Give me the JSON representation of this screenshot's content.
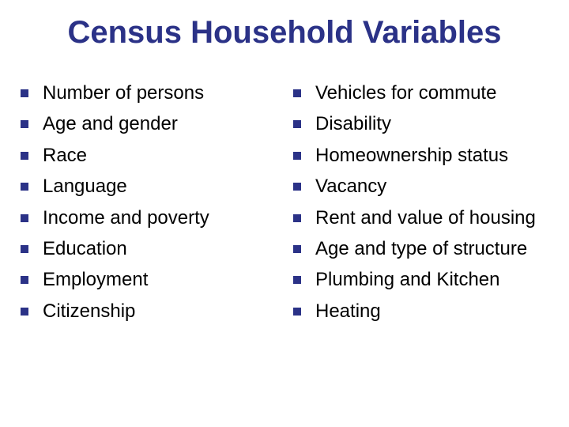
{
  "title": "Census Household Variables",
  "title_color": "#2b3287",
  "title_fontsize": 40,
  "bullet_color": "#2b3287",
  "bullet_size": 10,
  "item_fontsize": 24,
  "item_color": "#000000",
  "left_items": [
    "Number of persons",
    "Age and gender",
    "Race",
    "Language",
    "Income and poverty",
    "Education",
    "Employment",
    "Citizenship"
  ],
  "right_items": [
    "Vehicles for commute",
    "Disability",
    "Homeownership status",
    "Vacancy",
    "Rent and value of housing",
    "Age and type of structure",
    "Plumbing and Kitchen",
    "Heating"
  ]
}
